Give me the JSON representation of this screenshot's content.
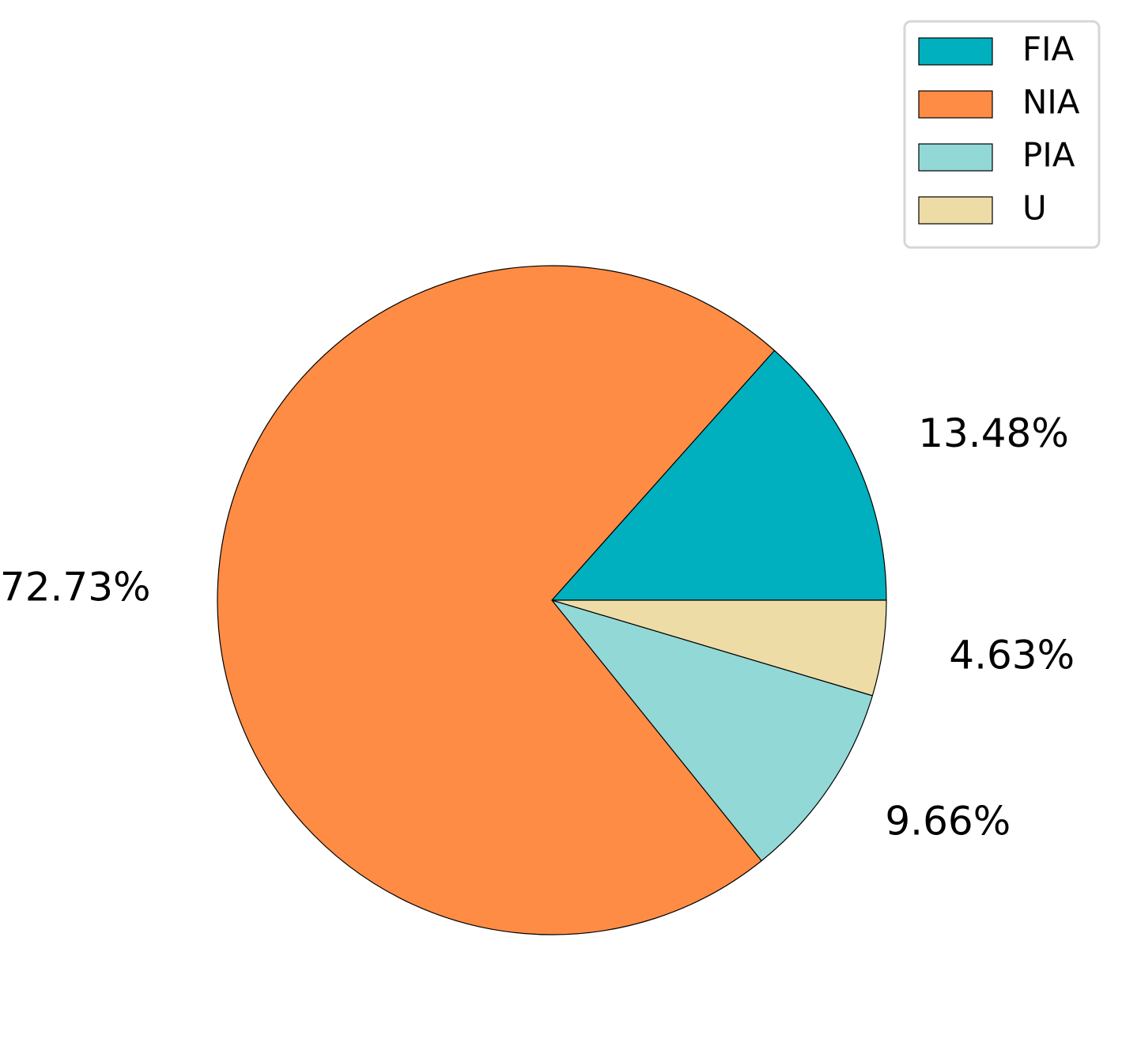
{
  "chart_data": {
    "type": "pie",
    "slices": [
      {
        "name": "FIA",
        "value": 13.48,
        "label": "13.48%",
        "color": "#00b0be"
      },
      {
        "name": "NIA",
        "value": 72.73,
        "label": "72.73%",
        "color": "#ff8c45"
      },
      {
        "name": "PIA",
        "value": 9.66,
        "label": "9.66%",
        "color": "#92d8d6"
      },
      {
        "name": "U",
        "value": 4.63,
        "label": "4.63%",
        "color": "#eedca7"
      }
    ],
    "start_angle_deg": 0,
    "direction": "counterclockwise",
    "edge_color": "#000000",
    "legend": {
      "placement": "top-right",
      "entries": [
        "FIA",
        "NIA",
        "PIA",
        "U"
      ]
    }
  }
}
